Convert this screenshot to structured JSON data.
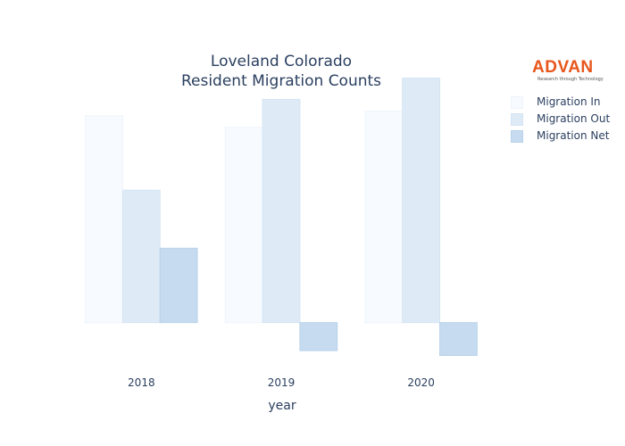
{
  "chart_data": {
    "type": "bar",
    "title": [
      "Loveland Colorado",
      "Resident Migration Counts"
    ],
    "xlabel": "year",
    "ylabel": "",
    "categories": [
      "2018",
      "2019",
      "2020"
    ],
    "series": [
      {
        "name": "Migration In",
        "values": [
          2140,
          2020,
          2190
        ],
        "color": "#f7fbff",
        "stroke": "#eef4fb"
      },
      {
        "name": "Migration Out",
        "values": [
          1370,
          2310,
          2530
        ],
        "color": "#deebf7",
        "stroke": "#d4e4f3"
      },
      {
        "name": "Migration Net",
        "values": [
          770,
          -290,
          -340
        ],
        "color": "#c6dbef",
        "stroke": "#b9d2ea"
      }
    ],
    "ylim": [
      -400,
      2600
    ],
    "grid": false,
    "legend": "top-right"
  },
  "logo": {
    "word": "ADVAN",
    "tagline": "Research through Technology",
    "color": "#e8561c"
  }
}
